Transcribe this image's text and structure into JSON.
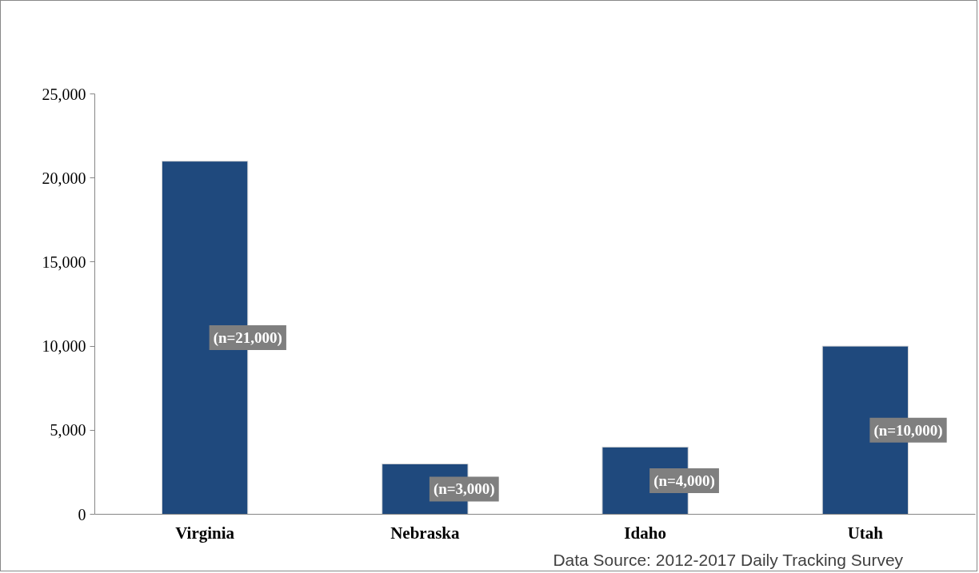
{
  "chart_data": {
    "type": "bar",
    "categories": [
      "Virginia",
      "Nebraska",
      "Idaho",
      "Utah"
    ],
    "values": [
      21000,
      3000,
      4000,
      10000
    ],
    "value_labels": [
      "(n=21,000)",
      "(n=3,000)",
      "(n=4,000)",
      "(n=10,000)"
    ],
    "color": "#1f497d",
    "ylim": [
      0,
      25000
    ],
    "yticks": [
      {
        "value": 0,
        "label": "0"
      },
      {
        "value": 5000,
        "label": "5,000"
      },
      {
        "value": 10000,
        "label": "10,000"
      },
      {
        "value": 15000,
        "label": "15,000"
      },
      {
        "value": 20000,
        "label": "20,000"
      },
      {
        "value": 25000,
        "label": "25,000"
      }
    ],
    "grid": false,
    "annotations": [
      "Data Source: 2012-2017 Daily Tracking Survey"
    ]
  }
}
